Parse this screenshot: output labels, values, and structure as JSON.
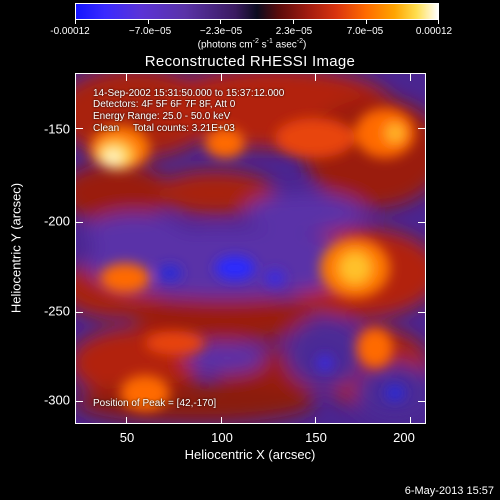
{
  "colorbar": {
    "tick_labels": [
      "-0.00012",
      "−7.0e−05",
      "−2.3e−05",
      "2.3e−05",
      "7.0e−05",
      "0.00012"
    ],
    "units": "(photons cm",
    "units_exp1": "-2",
    "units_mid": " s",
    "units_exp2": "-1",
    "units_mid2": " asec",
    "units_exp3": "-2",
    "units_end": ")"
  },
  "title": "Reconstructed RHESSI Image",
  "info": {
    "time_range": "14-Sep-2002 15:31:50.000 to 15:37:12.000",
    "detectors": "Detectors: 4F 5F 6F 7F 8F, Att 0",
    "energy_range": "Energy Range: 25.0 - 50.0 keV",
    "clean_counts": "Clean     Total counts: 3.21E+03",
    "peak_position": "Position of Peak = [42,-170]"
  },
  "axes": {
    "x_title": "Heliocentric X (arcsec)",
    "y_title": "Heliocentric Y (arcsec)",
    "x_ticks": [
      "50",
      "100",
      "150",
      "200"
    ],
    "y_ticks": [
      "-150",
      "-200",
      "-250",
      "-300"
    ]
  },
  "footer_date": "6-May-2013 15:57",
  "colors": {
    "background": "#000000",
    "negative_low": "#1414ff",
    "negative_mid": "#5a33a8",
    "positive_mid": "#d9340f",
    "positive_high": "#ffffff"
  }
}
